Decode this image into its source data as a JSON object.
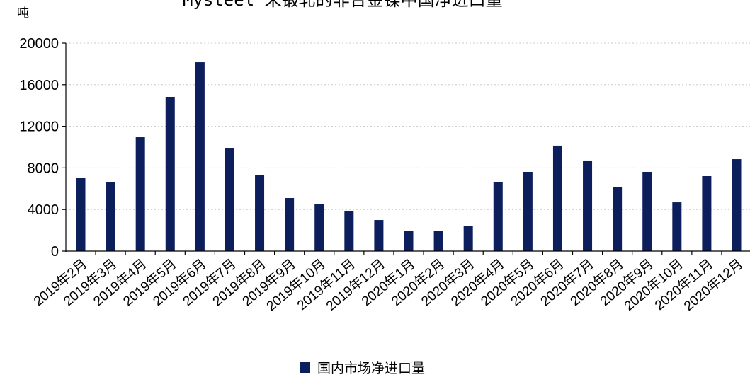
{
  "chart_data": {
    "type": "bar",
    "title": "Mysteel 未锻轧的非合金镍中国净进口量",
    "ylabel": "吨",
    "ylim": [
      0,
      20000
    ],
    "yticks": [
      "0",
      "4000",
      "8000",
      "12000",
      "16000",
      "20000"
    ],
    "grid": "horizontal dotted",
    "legend_position": "bottom-center",
    "categories": [
      "2019年2月",
      "2019年3月",
      "2019年4月",
      "2019年5月",
      "2019年6月",
      "2019年7月",
      "2019年8月",
      "2019年9月",
      "2019年10月",
      "2019年11月",
      "2019年12月",
      "2020年1月",
      "2020年2月",
      "2020年3月",
      "2020年4月",
      "2020年5月",
      "2020年6月",
      "2020年7月",
      "2020年8月",
      "2020年9月",
      "2020年10月",
      "2020年11月",
      "2020年12月"
    ],
    "series": [
      {
        "name": "国内市场净进口量",
        "color": "#0c1e5b",
        "values": [
          7050,
          6600,
          10950,
          14830,
          18160,
          9930,
          7280,
          5100,
          4490,
          3880,
          2990,
          1970,
          1970,
          2450,
          6600,
          7620,
          10140,
          8710,
          6190,
          7620,
          4690,
          7210,
          8840
        ]
      }
    ]
  }
}
